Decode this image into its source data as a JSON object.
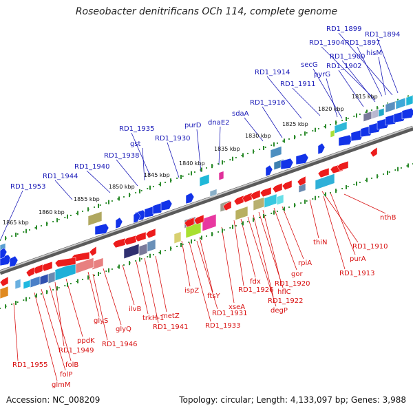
{
  "title": "Roseobacter denitrificans OCh 114, complete genome",
  "footer": {
    "accession": "Accession: NC_008209",
    "info": "Topology: circular; Length: 4,133,097 bp; Genes: 3,988"
  },
  "colors": {
    "forward_label": "#1a1ab8",
    "reverse_label": "#d81010",
    "forward_arrow": "#1233e8",
    "reverse_arrow": "#ec1c1c",
    "backbone": "#8c8c8c",
    "tick": "#2a8a2a"
  },
  "scale_labels": [
    "1815 kbp",
    "1820 kbp",
    "1825 kbp",
    "1830 kbp",
    "1835 kbp",
    "1840 kbp",
    "1845 kbp",
    "1850 kbp",
    "1855 kbp",
    "1860 kbp",
    "1865 kbp"
  ],
  "forward_genes": [
    "RD1_1899",
    "RD1_1894",
    "RD1_1904",
    "RD1_1897",
    "hisM",
    "RD1_1900",
    "secG",
    "RD1_1902",
    "pyrG",
    "RD1_1914",
    "RD1_1911",
    "RD1_1916",
    "sdaA",
    "dnaE2",
    "purD",
    "RD1_1935",
    "RD1_1930",
    "gst",
    "RD1_1938",
    "RD1_1940",
    "RD1_1944",
    "RD1_1953"
  ],
  "reverse_genes": [
    "nthB",
    "RD1_1910",
    "purA",
    "RD1_1913",
    "thiN",
    "rpiA",
    "gor",
    "RD1_1920",
    "hflC",
    "RD1_1922",
    "degP",
    "fdx",
    "RD1_1926",
    "xseA",
    "ftsY",
    "RD1_1931",
    "ispZ",
    "RD1_1933",
    "metZ",
    "RD1_1941",
    "trkH-1",
    "ilvB",
    "glyQ",
    "glyS",
    "RD1_1946",
    "ppdK",
    "RD1_1949",
    "folB",
    "folP",
    "glmM",
    "RD1_1955"
  ]
}
